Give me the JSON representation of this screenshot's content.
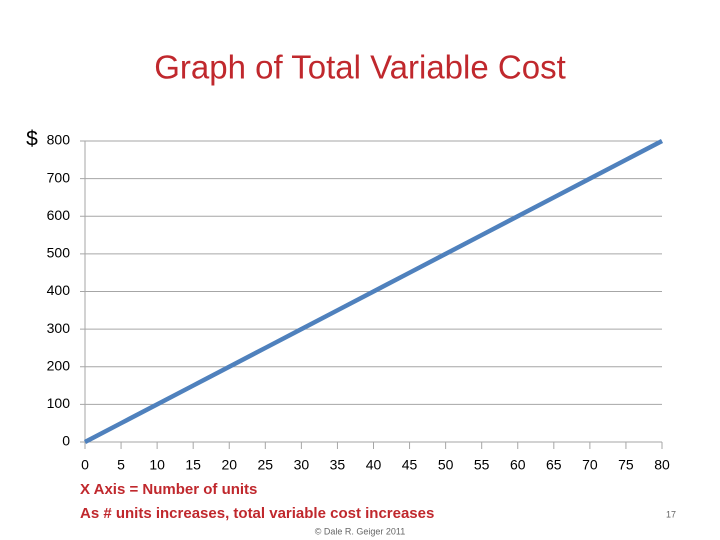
{
  "chart_data": {
    "type": "line",
    "title": "Graph of Total Variable Cost",
    "ylabel": "$",
    "x": [
      0,
      5,
      10,
      15,
      20,
      25,
      30,
      35,
      40,
      45,
      50,
      55,
      60,
      65,
      70,
      75,
      80
    ],
    "series": [
      {
        "color": "#4f81bd",
        "values": [
          0,
          50,
          100,
          150,
          200,
          250,
          300,
          350,
          400,
          450,
          500,
          550,
          600,
          650,
          700,
          750,
          800
        ]
      }
    ],
    "xlim": [
      0,
      80
    ],
    "xticks": [
      0,
      5,
      10,
      15,
      20,
      25,
      30,
      35,
      40,
      45,
      50,
      55,
      60,
      65,
      70,
      75,
      80
    ],
    "ylim": [
      0,
      800
    ],
    "yticks": [
      0,
      100,
      200,
      300,
      400,
      500,
      600,
      700,
      800
    ],
    "grid": true,
    "annotations": [
      "X Axis = Number of units",
      "As # units increases, total variable cost increases"
    ]
  },
  "footer": {
    "copyright": "© Dale R. Geiger 2011",
    "page": "17"
  }
}
